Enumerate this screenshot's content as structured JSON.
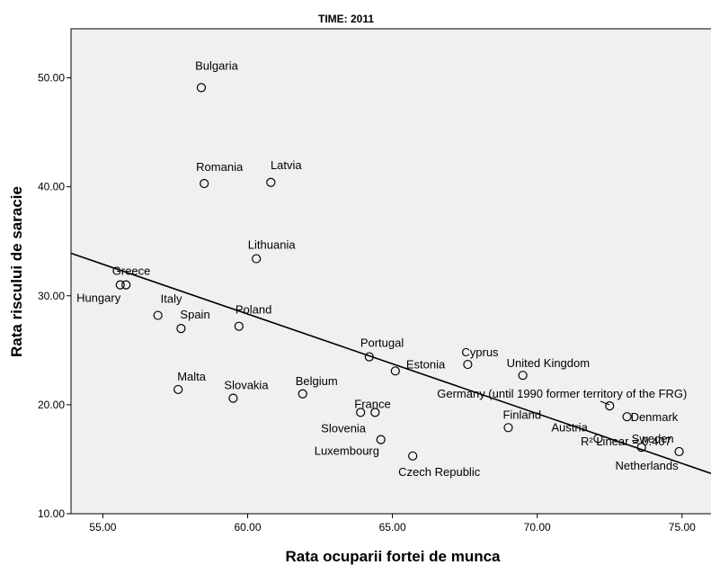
{
  "chart_data": {
    "type": "scatter",
    "title": "TIME: 2011",
    "xlabel": "Rata ocuparii fortei de munca",
    "ylabel": "Rata riscului de saracie",
    "xlim": [
      53.9,
      76.0
    ],
    "ylim": [
      10.0,
      54.5
    ],
    "xticks": [
      55.0,
      60.0,
      65.0,
      70.0,
      75.0
    ],
    "xtick_labels": [
      "55.00",
      "60.00",
      "65.00",
      "70.00",
      "75.00"
    ],
    "yticks": [
      10.0,
      20.0,
      30.0,
      40.0,
      50.0
    ],
    "ytick_labels": [
      "10.00",
      "20.00",
      "30.00",
      "40.00",
      "50.00"
    ],
    "points": [
      {
        "label": "Bulgaria",
        "x": 58.4,
        "y": 49.1
      },
      {
        "label": "Romania",
        "x": 58.5,
        "y": 40.3
      },
      {
        "label": "Latvia",
        "x": 60.8,
        "y": 40.4
      },
      {
        "label": "Lithuania",
        "x": 60.3,
        "y": 33.4
      },
      {
        "label": "Greece",
        "x": 55.6,
        "y": 31.0
      },
      {
        "label": "Hungary",
        "x": 55.8,
        "y": 31.0
      },
      {
        "label": "Italy",
        "x": 56.9,
        "y": 28.2
      },
      {
        "label": "Spain",
        "x": 57.7,
        "y": 27.0
      },
      {
        "label": "Poland",
        "x": 59.7,
        "y": 27.2
      },
      {
        "label": "Portugal",
        "x": 64.2,
        "y": 24.4
      },
      {
        "label": "Estonia",
        "x": 65.1,
        "y": 23.1
      },
      {
        "label": "Cyprus",
        "x": 67.6,
        "y": 23.7
      },
      {
        "label": "United Kingdom",
        "x": 69.5,
        "y": 22.7
      },
      {
        "label": "Germany (until 1990 former territory of the FRG)",
        "x": 72.5,
        "y": 19.9
      },
      {
        "label": "Malta",
        "x": 57.6,
        "y": 21.4
      },
      {
        "label": "Slovakia",
        "x": 59.5,
        "y": 20.6
      },
      {
        "label": "Belgium",
        "x": 61.9,
        "y": 21.0
      },
      {
        "label": "France",
        "x": 64.4,
        "y": 19.3
      },
      {
        "label": "Slovenia",
        "x": 63.9,
        "y": 19.3
      },
      {
        "label": "Luxembourg",
        "x": 64.6,
        "y": 16.8
      },
      {
        "label": "Czech Republic",
        "x": 65.7,
        "y": 15.3
      },
      {
        "label": "Finland",
        "x": 69.0,
        "y": 17.9
      },
      {
        "label": "Austria",
        "x": 72.1,
        "y": 16.9
      },
      {
        "label": "Denmark",
        "x": 73.1,
        "y": 18.9
      },
      {
        "label": "Sweden",
        "x": 73.6,
        "y": 16.1
      },
      {
        "label": "Netherlands",
        "x": 74.9,
        "y": 15.7
      }
    ],
    "fit_line": {
      "type": "linear",
      "x": [
        53.9,
        76.0
      ],
      "y": [
        33.9,
        13.7
      ]
    },
    "annotation": "R² Linear = 0.407",
    "grid": false,
    "legend": "none"
  }
}
